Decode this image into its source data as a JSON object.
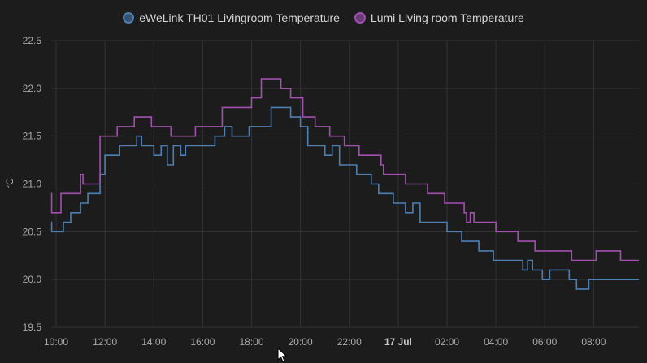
{
  "legend": {
    "series_1": "eWeLink TH01 Livingroom Temperature",
    "series_2": "Lumi Living room Temperature"
  },
  "colors": {
    "series_1": "#4d7fb3",
    "series_1_fill": "#35536f",
    "series_2": "#a24fb0",
    "series_2_fill": "#6a3a75",
    "grid": "#333333",
    "axis_text": "#a9a9a9"
  },
  "chart_data": {
    "type": "line",
    "step": true,
    "ylabel": "°C",
    "ylim": [
      19.5,
      22.5
    ],
    "yticks": [
      "22.5",
      "22.0",
      "21.5",
      "21.0",
      "20.5",
      "20.0",
      "19.5"
    ],
    "xlim": [
      9.8,
      33.85
    ],
    "xticks": [
      {
        "x": 10,
        "label": "10:00",
        "bold": false
      },
      {
        "x": 12,
        "label": "12:00",
        "bold": false
      },
      {
        "x": 14,
        "label": "14:00",
        "bold": false
      },
      {
        "x": 16,
        "label": "16:00",
        "bold": false
      },
      {
        "x": 18,
        "label": "18:00",
        "bold": false
      },
      {
        "x": 20,
        "label": "20:00",
        "bold": false
      },
      {
        "x": 22,
        "label": "22:00",
        "bold": false
      },
      {
        "x": 24,
        "label": "17 Jul",
        "bold": true
      },
      {
        "x": 26,
        "label": "02:00",
        "bold": false
      },
      {
        "x": 28,
        "label": "04:00",
        "bold": false
      },
      {
        "x": 30,
        "label": "06:00",
        "bold": false
      },
      {
        "x": 32,
        "label": "08:00",
        "bold": false
      }
    ],
    "series": [
      {
        "name": "eWeLink TH01 Livingroom Temperature",
        "points": [
          [
            9.8,
            20.6
          ],
          [
            9.82,
            20.5
          ],
          [
            10.3,
            20.6
          ],
          [
            10.6,
            20.7
          ],
          [
            11.0,
            20.8
          ],
          [
            11.3,
            20.9
          ],
          [
            11.8,
            21.1
          ],
          [
            12.0,
            21.3
          ],
          [
            12.6,
            21.4
          ],
          [
            13.3,
            21.5
          ],
          [
            13.5,
            21.4
          ],
          [
            14.0,
            21.3
          ],
          [
            14.3,
            21.4
          ],
          [
            14.55,
            21.2
          ],
          [
            14.8,
            21.4
          ],
          [
            15.1,
            21.3
          ],
          [
            15.3,
            21.4
          ],
          [
            16.5,
            21.5
          ],
          [
            16.9,
            21.6
          ],
          [
            17.2,
            21.5
          ],
          [
            17.9,
            21.6
          ],
          [
            18.8,
            21.8
          ],
          [
            19.6,
            21.7
          ],
          [
            20.0,
            21.6
          ],
          [
            20.3,
            21.4
          ],
          [
            21.0,
            21.3
          ],
          [
            21.3,
            21.4
          ],
          [
            21.6,
            21.2
          ],
          [
            22.3,
            21.1
          ],
          [
            22.9,
            21.0
          ],
          [
            23.2,
            20.9
          ],
          [
            23.8,
            20.8
          ],
          [
            24.3,
            20.7
          ],
          [
            24.6,
            20.8
          ],
          [
            24.9,
            20.6
          ],
          [
            26.0,
            20.5
          ],
          [
            26.6,
            20.4
          ],
          [
            27.3,
            20.3
          ],
          [
            27.9,
            20.2
          ],
          [
            29.1,
            20.1
          ],
          [
            29.3,
            20.2
          ],
          [
            29.5,
            20.1
          ],
          [
            29.9,
            20.0
          ],
          [
            30.2,
            20.1
          ],
          [
            31.0,
            20.0
          ],
          [
            31.3,
            19.9
          ],
          [
            31.8,
            20.0
          ],
          [
            33.85,
            20.0
          ]
        ]
      },
      {
        "name": "Lumi Living room Temperature",
        "points": [
          [
            9.8,
            20.9
          ],
          [
            9.82,
            20.7
          ],
          [
            10.2,
            20.9
          ],
          [
            11.0,
            21.1
          ],
          [
            11.1,
            21.0
          ],
          [
            11.8,
            21.5
          ],
          [
            12.5,
            21.6
          ],
          [
            13.2,
            21.7
          ],
          [
            13.9,
            21.6
          ],
          [
            14.7,
            21.5
          ],
          [
            15.7,
            21.6
          ],
          [
            16.8,
            21.8
          ],
          [
            18.0,
            21.9
          ],
          [
            18.4,
            22.1
          ],
          [
            19.2,
            22.0
          ],
          [
            19.6,
            21.9
          ],
          [
            20.1,
            21.7
          ],
          [
            20.6,
            21.6
          ],
          [
            21.2,
            21.5
          ],
          [
            21.8,
            21.4
          ],
          [
            22.4,
            21.3
          ],
          [
            23.3,
            21.2
          ],
          [
            23.4,
            21.1
          ],
          [
            24.3,
            21.0
          ],
          [
            25.2,
            20.9
          ],
          [
            25.9,
            20.8
          ],
          [
            26.7,
            20.7
          ],
          [
            26.8,
            20.6
          ],
          [
            26.95,
            20.7
          ],
          [
            27.1,
            20.6
          ],
          [
            28.0,
            20.5
          ],
          [
            28.9,
            20.4
          ],
          [
            29.6,
            20.3
          ],
          [
            31.1,
            20.2
          ],
          [
            32.1,
            20.3
          ],
          [
            33.1,
            20.2
          ],
          [
            33.85,
            20.2
          ]
        ]
      }
    ]
  }
}
